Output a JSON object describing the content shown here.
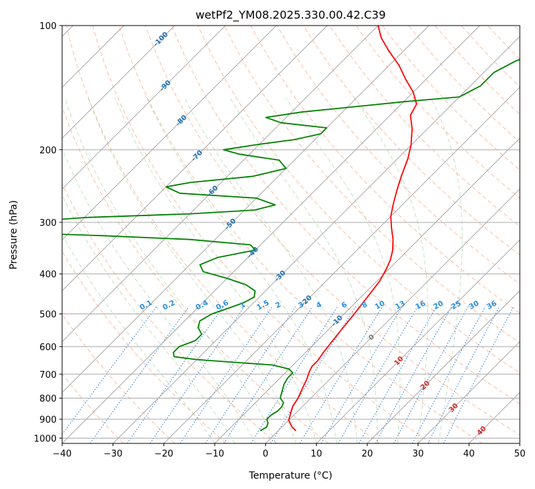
{
  "chart_data": {
    "type": "line",
    "title": "wetPf2_YM08.2025.330.00.42.C39",
    "xlabel": "Temperature (°C)",
    "ylabel": "Pressure (hPa)",
    "xlim": [
      -40,
      50
    ],
    "ylim": [
      1030,
      100
    ],
    "y_scale": "log",
    "grid": true,
    "x_ticks": [
      -40,
      -30,
      -20,
      -10,
      0,
      10,
      20,
      30,
      40,
      50
    ],
    "y_ticks": [
      100,
      200,
      300,
      400,
      500,
      600,
      700,
      800,
      900,
      1000
    ],
    "isotherm_labels": [
      {
        "label": "-100",
        "t": -100,
        "p": 108
      },
      {
        "label": "-90",
        "t": -90,
        "p": 140
      },
      {
        "label": "-80",
        "t": -80,
        "p": 170
      },
      {
        "label": "-70",
        "t": -70,
        "p": 207
      },
      {
        "label": "-60",
        "t": -60,
        "p": 252
      },
      {
        "label": "-50",
        "t": -50,
        "p": 303
      },
      {
        "label": "-40",
        "t": -40,
        "p": 355
      },
      {
        "label": "-30",
        "t": -30,
        "p": 405
      },
      {
        "label": "-20",
        "t": -20,
        "p": 465
      },
      {
        "label": "-10",
        "t": -10,
        "p": 520
      },
      {
        "label": "0",
        "t": 0,
        "p": 570
      },
      {
        "label": "10",
        "t": 10,
        "p": 650
      },
      {
        "label": "20",
        "t": 20,
        "p": 745
      },
      {
        "label": "30",
        "t": 30,
        "p": 845
      },
      {
        "label": "40",
        "t": 40,
        "p": 960
      }
    ],
    "mixing_ratio_labels": [
      {
        "label": "0.1",
        "t": -23.5
      },
      {
        "label": "0.2",
        "t": -19
      },
      {
        "label": "0.4",
        "t": -12.5
      },
      {
        "label": "0.6",
        "t": -8.5
      },
      {
        "label": "1",
        "t": -4.5
      },
      {
        "label": "1.5",
        "t": -0.5
      },
      {
        "label": "2",
        "t": 2.5
      },
      {
        "label": "3",
        "t": 7
      },
      {
        "label": "4",
        "t": 10.5
      },
      {
        "label": "6",
        "t": 15.5
      },
      {
        "label": "8",
        "t": 19.5
      },
      {
        "label": "10",
        "t": 22.5
      },
      {
        "label": "13",
        "t": 26.5
      },
      {
        "label": "16",
        "t": 30.5
      },
      {
        "label": "20",
        "t": 34
      },
      {
        "label": "25",
        "t": 37.5
      },
      {
        "label": "30",
        "t": 41
      },
      {
        "label": "36",
        "t": 44.5
      }
    ],
    "series": [
      {
        "color": "#ff0000",
        "points": [
          [
            3.5,
            960
          ],
          [
            2,
            940
          ],
          [
            0,
            905
          ],
          [
            -1,
            870
          ],
          [
            -2,
            835
          ],
          [
            -2.5,
            800
          ],
          [
            -3.5,
            760
          ],
          [
            -4.5,
            720
          ],
          [
            -5.5,
            690
          ],
          [
            -6,
            670
          ],
          [
            -6,
            650
          ],
          [
            -6.5,
            620
          ],
          [
            -7,
            580
          ],
          [
            -7.5,
            540
          ],
          [
            -8,
            500
          ],
          [
            -8.5,
            470
          ],
          [
            -9,
            440
          ],
          [
            -9.5,
            415
          ],
          [
            -10.5,
            390
          ],
          [
            -11.5,
            370
          ],
          [
            -13,
            350
          ],
          [
            -15,
            330
          ],
          [
            -17.5,
            310
          ],
          [
            -20,
            290
          ],
          [
            -22,
            270
          ],
          [
            -24,
            250
          ],
          [
            -26,
            230
          ],
          [
            -28,
            210
          ],
          [
            -30,
            195
          ],
          [
            -33,
            178
          ],
          [
            -36,
            165
          ],
          [
            -37,
            155
          ],
          [
            -40,
            145
          ],
          [
            -44,
            135
          ],
          [
            -48,
            125
          ],
          [
            -53,
            115
          ],
          [
            -57,
            107
          ],
          [
            -60,
            100
          ]
        ]
      },
      {
        "color": "#008000",
        "points": [
          [
            -3.5,
            960
          ],
          [
            -3,
            940
          ],
          [
            -3.5,
            920
          ],
          [
            -4.5,
            900
          ],
          [
            -4.5,
            880
          ],
          [
            -4,
            860
          ],
          [
            -4,
            840
          ],
          [
            -4.5,
            820
          ],
          [
            -6,
            800
          ],
          [
            -7,
            770
          ],
          [
            -8,
            740
          ],
          [
            -8.5,
            715
          ],
          [
            -8.5,
            695
          ],
          [
            -10,
            680
          ],
          [
            -14,
            665
          ],
          [
            -22,
            655
          ],
          [
            -30,
            645
          ],
          [
            -35,
            635
          ],
          [
            -36,
            620
          ],
          [
            -36,
            600
          ],
          [
            -34,
            580
          ],
          [
            -34,
            560
          ],
          [
            -36,
            540
          ],
          [
            -37,
            520
          ],
          [
            -36,
            500
          ],
          [
            -34,
            485
          ],
          [
            -32,
            470
          ],
          [
            -31,
            455
          ],
          [
            -32,
            440
          ],
          [
            -35,
            425
          ],
          [
            -40,
            410
          ],
          [
            -46,
            395
          ],
          [
            -48,
            380
          ],
          [
            -46,
            365
          ],
          [
            -40,
            350
          ],
          [
            -42,
            340
          ],
          [
            -55,
            330
          ],
          [
            -73,
            323
          ],
          [
            -90,
            318
          ],
          [
            -92,
            300
          ],
          [
            -80,
            292
          ],
          [
            -60,
            286
          ],
          [
            -48,
            280
          ],
          [
            -45,
            272
          ],
          [
            -50,
            262
          ],
          [
            -66,
            255
          ],
          [
            -70,
            246
          ],
          [
            -66,
            240
          ],
          [
            -55,
            232
          ],
          [
            -50,
            222
          ],
          [
            -53,
            212
          ],
          [
            -62,
            205
          ],
          [
            -66,
            200
          ],
          [
            -60,
            194
          ],
          [
            -54,
            189
          ],
          [
            -50,
            183
          ],
          [
            -50,
            177
          ],
          [
            -60,
            172
          ],
          [
            -64,
            167
          ],
          [
            -58,
            162
          ],
          [
            -48,
            157
          ],
          [
            -40,
            153
          ],
          [
            -30,
            149
          ],
          [
            -28,
            140
          ],
          [
            -28,
            130
          ],
          [
            -26,
            122
          ],
          [
            -22,
            114
          ],
          [
            -21,
            108
          ],
          [
            -18,
            102
          ],
          [
            -17,
            100
          ]
        ]
      }
    ]
  }
}
